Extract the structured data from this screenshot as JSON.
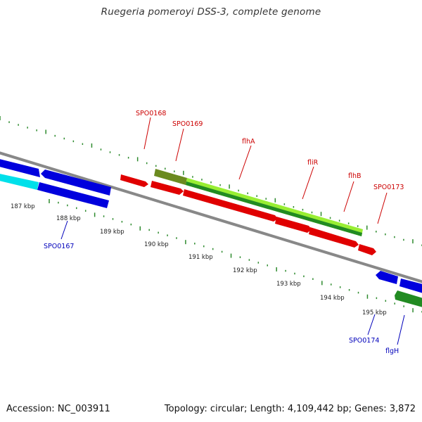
{
  "title": "Ruegeria pomeroyi DSS-3, complete genome",
  "footer": {
    "accession": "Accession: NC_003911",
    "summary": "Topology: circular; Length: 4,109,442 bp; Genes: 3,872"
  },
  "colors": {
    "backbone": "#888888",
    "tick_green": "#2e8b2e",
    "feature_red": "#e00000",
    "feature_blue": "#0000dd",
    "feature_cyan": "#00e0ea",
    "feature_olive": "#6b8a1f",
    "feature_lime": "#99ee33",
    "feature_darkgreen": "#228b22",
    "label_red": "#cc0000",
    "label_blue": "#0000bb"
  },
  "kbp_labels": [
    "187 kbp",
    "188 kbp",
    "189 kbp",
    "190 kbp",
    "191 kbp",
    "192 kbp",
    "193 kbp",
    "194 kbp",
    "195 kbp"
  ],
  "gene_labels_top": [
    "SPO0168",
    "SPO0169",
    "flhA",
    "fliR",
    "flhB",
    "SPO0173"
  ],
  "gene_labels_bottom": [
    "SPO0167",
    "SPO0174",
    "flgH"
  ]
}
